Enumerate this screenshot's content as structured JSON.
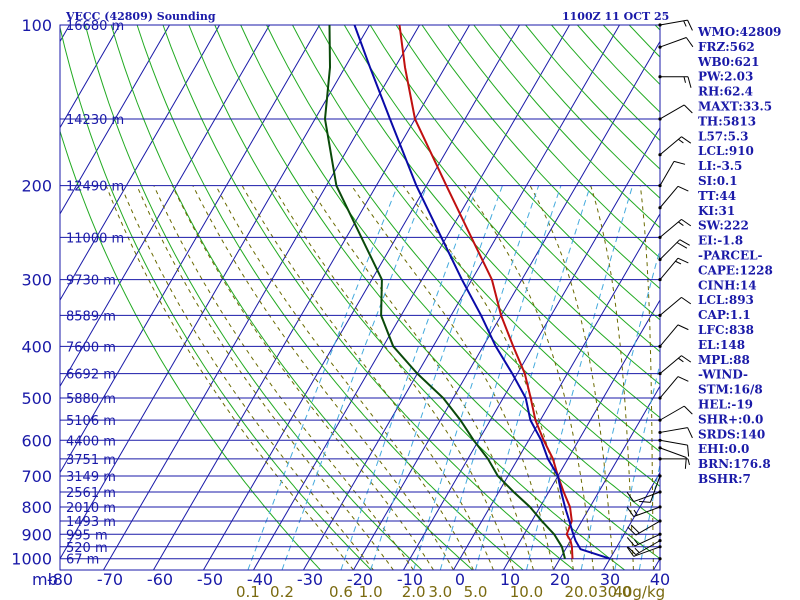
{
  "chart_data": {
    "type": "line",
    "title": "VECC (42809) Sounding",
    "timestamp": "1100Z 11 OCT 25",
    "x_axis": {
      "unit_label": "mb",
      "ticks": [
        "-80",
        "-70",
        "-60",
        "-50",
        "-40",
        "-30",
        "-20",
        "-10",
        "0",
        "10",
        "20",
        "30",
        "40"
      ],
      "range": [
        -80,
        40
      ]
    },
    "y_axis": {
      "scale": "log",
      "ticks": [
        "100",
        "200",
        "300",
        "400",
        "500",
        "600",
        "700",
        "800",
        "900",
        "1000"
      ],
      "range_mb": [
        100,
        1050
      ]
    },
    "mixing_ratio_labels": [
      "0.1",
      "0.2",
      "0.6",
      "1.0",
      "2.0",
      "3.0",
      "5.0",
      "10.0",
      "20.0",
      "30.0",
      "40g/kg"
    ],
    "mixing_ratio_values": [
      0.1,
      0.2,
      0.6,
      1.0,
      2.0,
      3.0,
      5.0,
      10.0,
      20.0,
      30.0,
      40.0
    ],
    "height_labels": [
      {
        "p": 100,
        "text": "16680 m"
      },
      {
        "p": 150,
        "text": "14230 m"
      },
      {
        "p": 200,
        "text": "12490 m"
      },
      {
        "p": 250,
        "text": "11000 m"
      },
      {
        "p": 300,
        "text": "9730 m"
      },
      {
        "p": 350,
        "text": "8589 m"
      },
      {
        "p": 400,
        "text": "7600 m"
      },
      {
        "p": 450,
        "text": "6692 m"
      },
      {
        "p": 500,
        "text": "5880 m"
      },
      {
        "p": 550,
        "text": "5106 m"
      },
      {
        "p": 600,
        "text": "4400 m"
      },
      {
        "p": 650,
        "text": "3751 m"
      },
      {
        "p": 700,
        "text": "3149 m"
      },
      {
        "p": 750,
        "text": "2561 m"
      },
      {
        "p": 800,
        "text": "2010 m"
      },
      {
        "p": 850,
        "text": "1493 m"
      },
      {
        "p": 900,
        "text": "995 m"
      },
      {
        "p": 950,
        "text": "520 m"
      },
      {
        "p": 1000,
        "text": "67 m"
      }
    ],
    "series": [
      {
        "key": "temperature",
        "color": "#c01010",
        "points": [
          [
            1000,
            22.5
          ],
          [
            950,
            21
          ],
          [
            925,
            20
          ],
          [
            900,
            18.5
          ],
          [
            850,
            18
          ],
          [
            800,
            16
          ],
          [
            750,
            13
          ],
          [
            700,
            10
          ],
          [
            650,
            7
          ],
          [
            600,
            3
          ],
          [
            550,
            -1
          ],
          [
            500,
            -4.5
          ],
          [
            450,
            -8.5
          ],
          [
            400,
            -14
          ],
          [
            350,
            -20
          ],
          [
            300,
            -26
          ],
          [
            250,
            -35
          ],
          [
            200,
            -46
          ],
          [
            150,
            -60
          ],
          [
            120,
            -68
          ],
          [
            100,
            -74
          ]
        ]
      },
      {
        "key": "dewpoint",
        "color": "#0a4a0a",
        "points": [
          [
            1000,
            21
          ],
          [
            950,
            19
          ],
          [
            900,
            16
          ],
          [
            850,
            12
          ],
          [
            800,
            8
          ],
          [
            750,
            3
          ],
          [
            700,
            -2
          ],
          [
            650,
            -6
          ],
          [
            600,
            -11
          ],
          [
            550,
            -16
          ],
          [
            500,
            -22
          ],
          [
            450,
            -30
          ],
          [
            400,
            -38
          ],
          [
            350,
            -44
          ],
          [
            300,
            -48
          ],
          [
            250,
            -57
          ],
          [
            200,
            -68
          ],
          [
            150,
            -78
          ],
          [
            120,
            -83
          ],
          [
            100,
            -88
          ]
        ]
      },
      {
        "key": "parcel",
        "color": "#0a0aa8",
        "points": [
          [
            1000,
            30
          ],
          [
            960,
            23
          ],
          [
            925,
            21
          ],
          [
            893,
            19.5
          ],
          [
            850,
            17.5
          ],
          [
            800,
            15
          ],
          [
            750,
            12.5
          ],
          [
            700,
            10
          ],
          [
            650,
            6
          ],
          [
            600,
            2.5
          ],
          [
            550,
            -2
          ],
          [
            500,
            -5.5
          ],
          [
            450,
            -11
          ],
          [
            400,
            -17.5
          ],
          [
            350,
            -24
          ],
          [
            300,
            -32
          ],
          [
            250,
            -41
          ],
          [
            200,
            -52
          ],
          [
            150,
            -65
          ],
          [
            120,
            -75
          ],
          [
            100,
            -83
          ]
        ]
      }
    ],
    "wind_barbs": [
      {
        "p": 1000,
        "dir": 0,
        "spd": 0
      },
      {
        "p": 950,
        "dir": 250,
        "spd": 10
      },
      {
        "p": 925,
        "dir": 240,
        "spd": 15
      },
      {
        "p": 900,
        "dir": 245,
        "spd": 15
      },
      {
        "p": 850,
        "dir": 240,
        "spd": 20
      },
      {
        "p": 800,
        "dir": 250,
        "spd": 15
      },
      {
        "p": 750,
        "dir": 250,
        "spd": 10
      },
      {
        "p": 700,
        "dir": 200,
        "spd": 10
      },
      {
        "p": 650,
        "dir": 90,
        "spd": 5
      },
      {
        "p": 620,
        "dir": 110,
        "spd": 10
      },
      {
        "p": 600,
        "dir": 100,
        "spd": 10
      },
      {
        "p": 580,
        "dir": 80,
        "spd": 10
      },
      {
        "p": 550,
        "dir": 60,
        "spd": 10
      },
      {
        "p": 500,
        "dir": 40,
        "spd": 10
      },
      {
        "p": 450,
        "dir": 50,
        "spd": 15
      },
      {
        "p": 400,
        "dir": 40,
        "spd": 10
      },
      {
        "p": 350,
        "dir": 50,
        "spd": 10
      },
      {
        "p": 300,
        "dir": 40,
        "spd": 15
      },
      {
        "p": 275,
        "dir": 45,
        "spd": 20
      },
      {
        "p": 250,
        "dir": 50,
        "spd": 15
      },
      {
        "p": 220,
        "dir": 40,
        "spd": 10
      },
      {
        "p": 200,
        "dir": 30,
        "spd": 10
      },
      {
        "p": 175,
        "dir": 50,
        "spd": 15
      },
      {
        "p": 150,
        "dir": 60,
        "spd": 10
      },
      {
        "p": 125,
        "dir": 90,
        "spd": 15
      },
      {
        "p": 110,
        "dir": 70,
        "spd": 10
      },
      {
        "p": 100,
        "dir": 80,
        "spd": 15
      }
    ],
    "indices": [
      "WMO:42809",
      "FRZ:562",
      "WB0:621",
      "PW:2.03",
      "RH:62.4",
      "MAXT:33.5",
      "TH:5813",
      "L57:5.3",
      "LCL:910",
      "LI:-3.5",
      "SI:0.1",
      "TT:44",
      "KI:31",
      "SW:222",
      "EI:-1.8",
      "-PARCEL-",
      "CAPE:1228",
      "CINH:14",
      "LCL:893",
      "CAP:1.1",
      "LFC:838",
      "EL:148",
      "MPL:88",
      "-WIND-",
      "STM:16/8",
      "HEL:-19",
      "SHR+:0.0",
      "SRDS:140",
      "EHI:0.0",
      "BRN:176.8",
      "BSHR:7"
    ],
    "colors": {
      "isobar": "#1a1aa8",
      "isotherm": "#1a1aa8",
      "dry_adiabat": "#22aa22",
      "moist_adiabat": "#6a6a00",
      "mixing_ratio": "#44aadd",
      "axis_text": "#1a1aa8",
      "mixing_text": "#7a6a10",
      "barb": "#000000"
    }
  }
}
